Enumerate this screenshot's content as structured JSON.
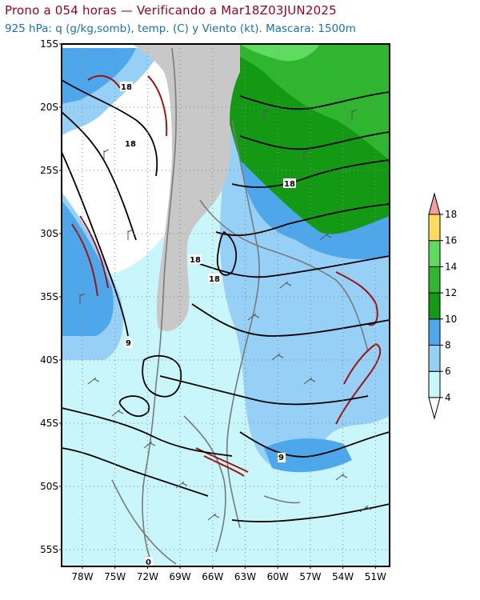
{
  "title_line1": "Prono a 054 horas — Verificando a Mar18Z03JUN2025",
  "title_line2": "925 hPa: q (g/kg,somb), temp. (C) y Viento (kt). Mascara: 1500m",
  "latitudes": [
    "15S",
    "20S",
    "25S",
    "30S",
    "35S",
    "40S",
    "45S",
    "50S",
    "55S"
  ],
  "longitudes": [
    "78W",
    "75W",
    "72W",
    "69W",
    "66W",
    "63W",
    "60W",
    "57W",
    "54W",
    "51W"
  ],
  "colorbar": {
    "labels": [
      "4",
      "6",
      "8",
      "10",
      "12",
      "14",
      "16",
      "18"
    ],
    "colors": [
      "#ffffff",
      "#c8f6fa",
      "#96d0f7",
      "#4ea7ea",
      "#139913",
      "#30b530",
      "#5fdc5f",
      "#ffdc60",
      "#f0a0a0"
    ]
  },
  "contour_labels": [
    "18",
    "18",
    "18",
    "18",
    "18",
    "9",
    "9",
    "0"
  ],
  "mask_color": "#c8c8c8"
}
